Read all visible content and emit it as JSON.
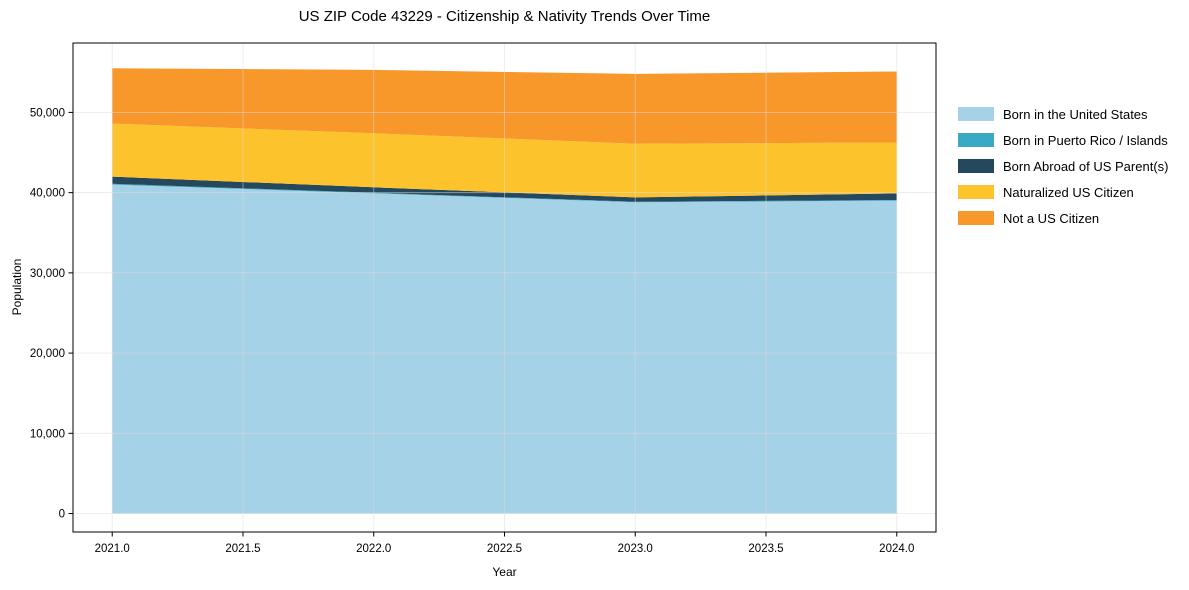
{
  "figure": {
    "background": "#ffffff",
    "text_color": "#000000",
    "spine_color": "#000000",
    "grid_color": "#dcdcdc",
    "tick_color": "#000000"
  },
  "chart_data": {
    "type": "area",
    "stacked": true,
    "title": "US ZIP Code 43229 - Citizenship & Nativity Trends Over Time",
    "xlabel": "Year",
    "ylabel": "Population",
    "x": [
      2021,
      2022,
      2023,
      2024
    ],
    "series": [
      {
        "name": "Born in the United States",
        "color": "#a6d2e7",
        "values": [
          41000,
          39900,
          38800,
          39000
        ]
      },
      {
        "name": "Born in Puerto Rico / Islands",
        "color": "#3ba8c4",
        "values": [
          100,
          80,
          60,
          80
        ]
      },
      {
        "name": "Born Abroad of US Parent(s)",
        "color": "#26485c",
        "values": [
          900,
          680,
          540,
          820
        ]
      },
      {
        "name": "Naturalized US Citizen",
        "color": "#fcc32d",
        "values": [
          6600,
          6740,
          6700,
          6350
        ]
      },
      {
        "name": "Not a US Citizen",
        "color": "#f8982b",
        "values": [
          6900,
          7900,
          8700,
          8850
        ]
      }
    ],
    "stacked_totals": [
      55500,
      55300,
      54800,
      55100
    ],
    "xlim": [
      2020.85,
      2024.15
    ],
    "ylim": [
      -2300,
      58650
    ],
    "xticks": [
      2021.0,
      2021.5,
      2022.0,
      2022.5,
      2023.0,
      2023.5,
      2024.0
    ],
    "yticks": [
      0,
      10000,
      20000,
      30000,
      40000,
      50000
    ],
    "grid": true,
    "legend": {
      "position": "right",
      "frame": false
    }
  }
}
